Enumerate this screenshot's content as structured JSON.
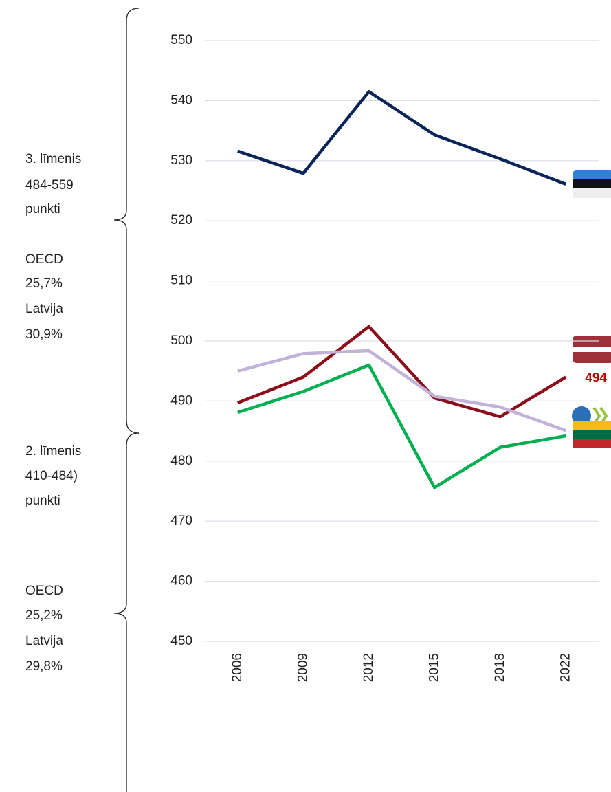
{
  "chart_data": {
    "type": "line",
    "categories": [
      "2006",
      "2009",
      "2012",
      "2015",
      "2018",
      "2022"
    ],
    "series": [
      {
        "color": "#0b2559",
        "values": [
          531.6,
          527.9,
          541.5,
          534.3,
          530.3,
          526.1
        ]
      },
      {
        "color": "#8b0e1a",
        "values": [
          489.7,
          494.0,
          502.4,
          490.5,
          487.4,
          494
        ],
        "value_labels": [
          null,
          null,
          null,
          null,
          null,
          "494"
        ],
        "label_color": "#c00000"
      },
      {
        "color": "#c3b2d8",
        "values": [
          495.0,
          497.9,
          498.4,
          490.8,
          489.0,
          485.1
        ]
      },
      {
        "color": "#00b050",
        "values": [
          488.1,
          491.6,
          496.0,
          475.6,
          482.3,
          484.2
        ]
      }
    ],
    "ylim": [
      450,
      550
    ],
    "yticks": [
      450,
      460,
      470,
      480,
      490,
      500,
      510,
      520,
      530,
      540,
      550
    ],
    "grid": true,
    "annotations": [
      [
        "3. līmenis",
        "484-559",
        "punkti",
        "OECD",
        "25,7%",
        "Latvija",
        "30,9%"
      ],
      [
        "2. līmenis",
        "410-484)",
        "punkti",
        "OECD",
        "25,2%",
        "Latvija",
        "29,8%"
      ]
    ]
  }
}
